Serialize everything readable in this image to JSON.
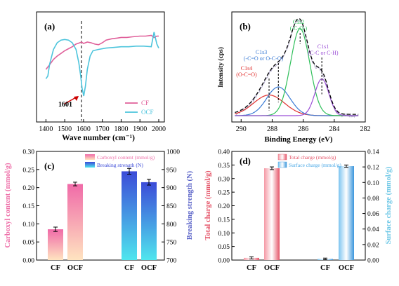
{
  "colors": {
    "cf_line": "#e0609a",
    "ocf_line": "#4cc4dc",
    "fit_dash": "#000000",
    "c1s4": "#e0302e",
    "c1s3": "#3a7bd5",
    "c1s2": "#2fbf5a",
    "c1s1": "#9b4fd6",
    "raw_band": "#7a6ea6",
    "carboxyl_top": "#f06aa8",
    "carboxyl_bottom": "#ffe4c0",
    "breaking_top": "#3c4bd8",
    "breaking_bottom": "#4fe6ee",
    "total_bar": "#f06a7c",
    "surface_bar": "#4aa8e6",
    "left_axis_a_c": "#ee6ea8",
    "right_axis_c": "#5a63c8",
    "left_axis_d": "#e55468",
    "right_axis_d": "#6cc7e6",
    "annotation": "#cc0000"
  },
  "chart_data": [
    {
      "panel": "(a)",
      "type": "line",
      "xlabel": "Wave number (cm⁻¹)",
      "xlim": [
        1350,
        2030
      ],
      "xticks": [
        "1400",
        "1500",
        "1600",
        "1700",
        "1800",
        "1900",
        "2000"
      ],
      "legend_position": "bottom-right",
      "annotation": {
        "text": "1601",
        "x": 1601
      },
      "series": [
        {
          "name": "CF",
          "x": [
            1400,
            1420,
            1440,
            1460,
            1480,
            1500,
            1520,
            1540,
            1560,
            1580,
            1590,
            1600,
            1610,
            1620,
            1640,
            1660,
            1680,
            1700,
            1720,
            1750,
            1780,
            1800,
            1830,
            1860,
            1900,
            1930,
            1960,
            1975,
            1990,
            2000
          ],
          "y": [
            0.4,
            0.47,
            0.55,
            0.6,
            0.64,
            0.68,
            0.71,
            0.74,
            0.78,
            0.8,
            0.81,
            0.79,
            0.8,
            0.81,
            0.8,
            0.78,
            0.77,
            0.8,
            0.84,
            0.86,
            0.87,
            0.88,
            0.88,
            0.89,
            0.9,
            0.9,
            0.91,
            0.88,
            0.9,
            0.9
          ]
        },
        {
          "name": "OCF",
          "x": [
            1400,
            1410,
            1420,
            1440,
            1460,
            1480,
            1500,
            1520,
            1540,
            1560,
            1575,
            1585,
            1592,
            1601,
            1610,
            1620,
            1635,
            1650,
            1680,
            1720,
            1760,
            1800,
            1840,
            1880,
            1920,
            1960,
            1975,
            1990,
            2000
          ],
          "y": [
            0.26,
            0.3,
            0.48,
            0.7,
            0.8,
            0.84,
            0.85,
            0.84,
            0.8,
            0.7,
            0.5,
            0.3,
            0.12,
            0.0,
            0.15,
            0.4,
            0.6,
            0.68,
            0.7,
            0.72,
            0.73,
            0.74,
            0.74,
            0.75,
            0.75,
            0.74,
            0.96,
            0.78,
            0.72
          ]
        }
      ]
    },
    {
      "panel": "(b)",
      "type": "line",
      "xlabel": "Binding Energy (eV)",
      "ylabel": "Intensity (cps)",
      "xlim": [
        290.6,
        282
      ],
      "xticks": [
        "290",
        "288",
        "286",
        "284",
        "282"
      ],
      "peaks": [
        {
          "name": "C1s4",
          "label": "(O-C=O)",
          "center": 288.2,
          "height": 0.23,
          "width": 1.0
        },
        {
          "name": "C1s3",
          "label": "(-C=O or O-C-O)",
          "center": 287.6,
          "height": 0.32,
          "width": 0.75
        },
        {
          "name": "C1s2",
          "label": "(-C-O-)",
          "center": 286.2,
          "height": 0.97,
          "width": 0.62
        },
        {
          "name": "C1s1",
          "label": "(C-C or C-H)",
          "center": 284.8,
          "height": 0.41,
          "width": 0.45
        }
      ]
    },
    {
      "panel": "(c)",
      "type": "bar",
      "categories": [
        "CF",
        "OCF"
      ],
      "left_axis": {
        "label": "Carboxyl content (mmol/g)",
        "ylim": [
          0,
          0.3
        ],
        "ticks": [
          "0.00",
          "0.05",
          "0.10",
          "0.15",
          "0.20",
          "0.25",
          "0.30"
        ]
      },
      "right_axis": {
        "label": "Breaking strength (N)",
        "ylim": [
          700,
          1000
        ],
        "ticks": [
          "700",
          "750",
          "800",
          "850",
          "900",
          "950",
          "1000"
        ]
      },
      "legend_position": "top-center",
      "series": [
        {
          "name": "Carboxyl content (mmol/g)",
          "axis": "left",
          "values": [
            0.085,
            0.21
          ],
          "errors": [
            0.006,
            0.005
          ]
        },
        {
          "name": "Breaking strength (N)",
          "axis": "right",
          "values": [
            945,
            915
          ],
          "errors": [
            8,
            8
          ]
        }
      ]
    },
    {
      "panel": "(d)",
      "type": "bar",
      "categories": [
        "CF",
        "OCF"
      ],
      "left_axis": {
        "label": "Total charge (mmol/g)",
        "ylim": [
          0,
          0.4
        ],
        "ticks": [
          "0.00",
          "0.05",
          "0.10",
          "0.15",
          "0.20",
          "0.25",
          "0.30",
          "0.35",
          "0.40"
        ]
      },
      "right_axis": {
        "label": "Surface charge (mmol/g)",
        "ylim": [
          0,
          0.14
        ],
        "ticks": [
          "0.00",
          "0.02",
          "0.04",
          "0.06",
          "0.08",
          "0.10",
          "0.12",
          "0.14"
        ]
      },
      "legend_position": "top-center",
      "series": [
        {
          "name": "Total charge (mmol/g)",
          "axis": "left",
          "values": [
            0.008,
            0.338
          ],
          "errors": [
            0.004,
            0.005
          ]
        },
        {
          "name": "Surface charge (mmol/g)",
          "axis": "right",
          "values": [
            0.0015,
            0.121
          ],
          "errors": [
            0.001,
            0.0015
          ]
        }
      ]
    }
  ]
}
